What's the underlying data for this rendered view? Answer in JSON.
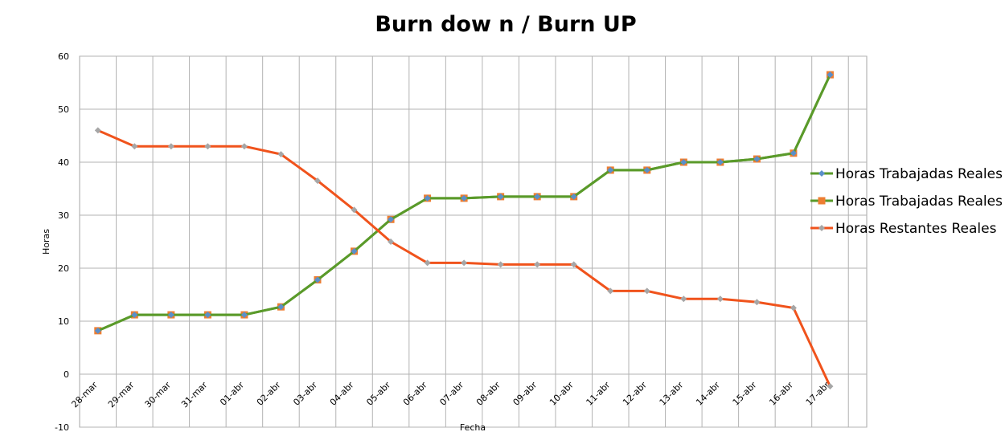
{
  "chart_data": {
    "type": "line",
    "title": "Burn dow n / Burn UP",
    "xlabel": "Fecha",
    "ylabel": "Horas",
    "ylim": [
      -10,
      60
    ],
    "yticks": [
      -10,
      0,
      10,
      20,
      30,
      40,
      50,
      60
    ],
    "grid": true,
    "legend_position": "right",
    "categories": [
      "28-mar",
      "29-mar",
      "30-mar",
      "31-mar",
      "01-abr",
      "02-abr",
      "03-abr",
      "04-abr",
      "05-abr",
      "06-abr",
      "07-abr",
      "08-abr",
      "09-abr",
      "10-abr",
      "11-abr",
      "12-abr",
      "13-abr",
      "14-abr",
      "15-abr",
      "16-abr",
      "17-abr"
    ],
    "series": [
      {
        "name": "Horas Trabajadas Reales",
        "color": "#5a9a2a",
        "marker": "diamond",
        "marker_color": "#5b8fc9",
        "values": [
          8.2,
          11.2,
          11.2,
          11.2,
          11.2,
          12.7,
          17.8,
          23.2,
          29.2,
          33.2,
          33.2,
          33.5,
          33.5,
          33.5,
          38.5,
          38.5,
          40,
          40,
          40.6,
          41.7,
          56.5
        ]
      },
      {
        "name": "Horas Trabajadas Reales",
        "color": "#5a9a2a",
        "marker": "square",
        "marker_color": "#ed7d31",
        "values": [
          8.2,
          11.2,
          11.2,
          11.2,
          11.2,
          12.7,
          17.8,
          23.2,
          29.2,
          33.2,
          33.2,
          33.5,
          33.5,
          33.5,
          38.5,
          38.5,
          40,
          40,
          40.6,
          41.7,
          56.5
        ]
      },
      {
        "name": "Horas Restantes Reales",
        "color": "#f0531c",
        "marker": "diamond",
        "marker_color": "#a6a6a6",
        "values": [
          46,
          43,
          43,
          43,
          43,
          41.5,
          36.5,
          31,
          25,
          21,
          21,
          20.7,
          20.7,
          20.7,
          15.7,
          15.7,
          14.2,
          14.2,
          13.6,
          12.5,
          -2.3
        ]
      }
    ]
  }
}
